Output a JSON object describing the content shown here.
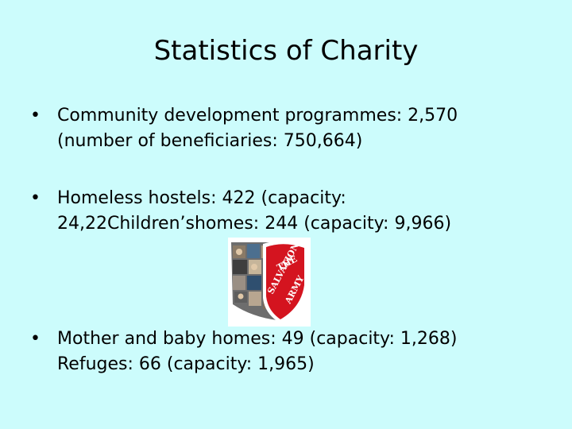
{
  "slide": {
    "title": "Statistics of Charity",
    "bullets": [
      {
        "marker": "•",
        "line1": "Community development programmes: 2,570",
        "line2": "(number of beneficiaries: 750,664)"
      },
      {
        "marker": "•",
        "line1": "Homeless hostels: 422 (capacity:",
        "line2": "24,22Children’shomes: 244 (capacity: 9,966)"
      },
      {
        "marker": "•",
        "line1": "Mother and baby homes: 49 (capacity: 1,268)",
        "line2": "Refuges: 66 (capacity: 1,965)"
      }
    ],
    "logo": {
      "text": [
        "THE",
        "SALVATION",
        "ARMY"
      ],
      "shield_color": "#d4141f"
    }
  }
}
